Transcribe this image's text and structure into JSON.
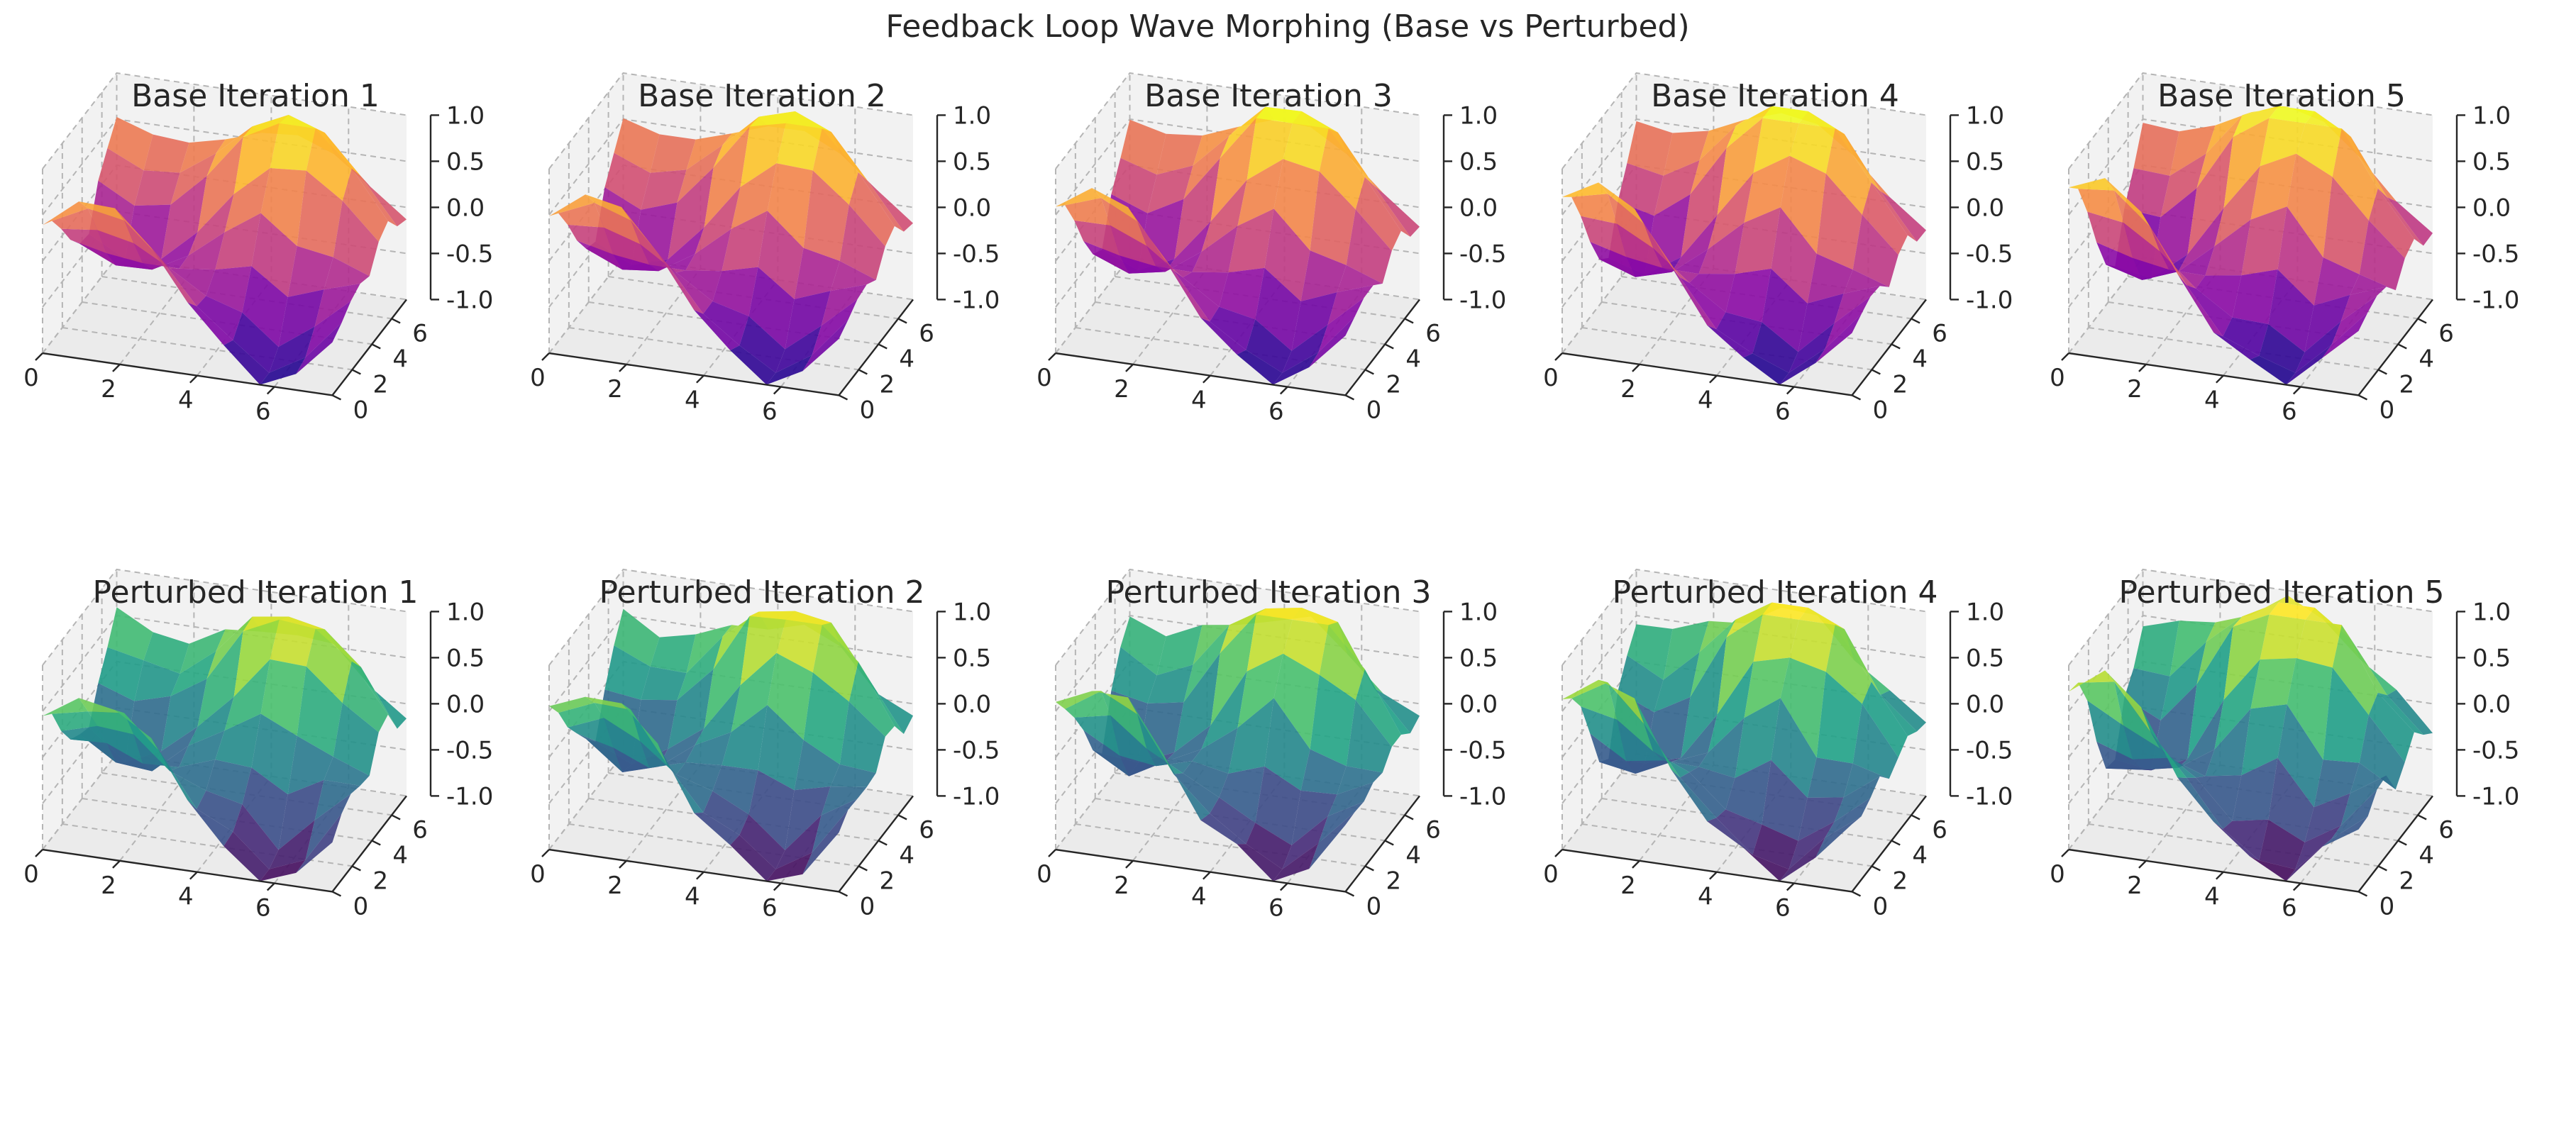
{
  "chart_data": {
    "type": "surface3d",
    "title": "Feedback Loop Wave Morphing (Base vs Perturbed)",
    "layout": {
      "rows": 2,
      "cols": 5
    },
    "x_range": [
      0,
      7.5
    ],
    "y_range": [
      0,
      7.5
    ],
    "z_range": [
      -1,
      1
    ],
    "x_ticks": [
      "0",
      "2",
      "4",
      "6"
    ],
    "y_ticks": [
      "0",
      "2",
      "4",
      "6"
    ],
    "z_ticks": [
      "1.0",
      "0.5",
      "0.0",
      "-0.5",
      "-1.0"
    ],
    "grid": true,
    "rows": [
      {
        "group": "base",
        "colormap": "plasma",
        "panels": [
          {
            "title": "Base Iteration 1",
            "iteration": 1,
            "amplitude": 0.9
          },
          {
            "title": "Base Iteration 2",
            "iteration": 2,
            "amplitude": 0.95
          },
          {
            "title": "Base Iteration 3",
            "iteration": 3,
            "amplitude": 1.0
          },
          {
            "title": "Base Iteration 4",
            "iteration": 4,
            "amplitude": 1.05
          },
          {
            "title": "Base Iteration 5",
            "iteration": 5,
            "amplitude": 1.1
          }
        ]
      },
      {
        "group": "perturbed",
        "colormap": "viridis",
        "panels": [
          {
            "title": "Perturbed Iteration 1",
            "iteration": 1,
            "amplitude": 0.9
          },
          {
            "title": "Perturbed Iteration 2",
            "iteration": 2,
            "amplitude": 0.95
          },
          {
            "title": "Perturbed Iteration 3",
            "iteration": 3,
            "amplitude": 1.0
          },
          {
            "title": "Perturbed Iteration 4",
            "iteration": 4,
            "amplitude": 1.05
          },
          {
            "title": "Perturbed Iteration 5",
            "iteration": 5,
            "amplitude": 1.1
          }
        ]
      }
    ]
  }
}
